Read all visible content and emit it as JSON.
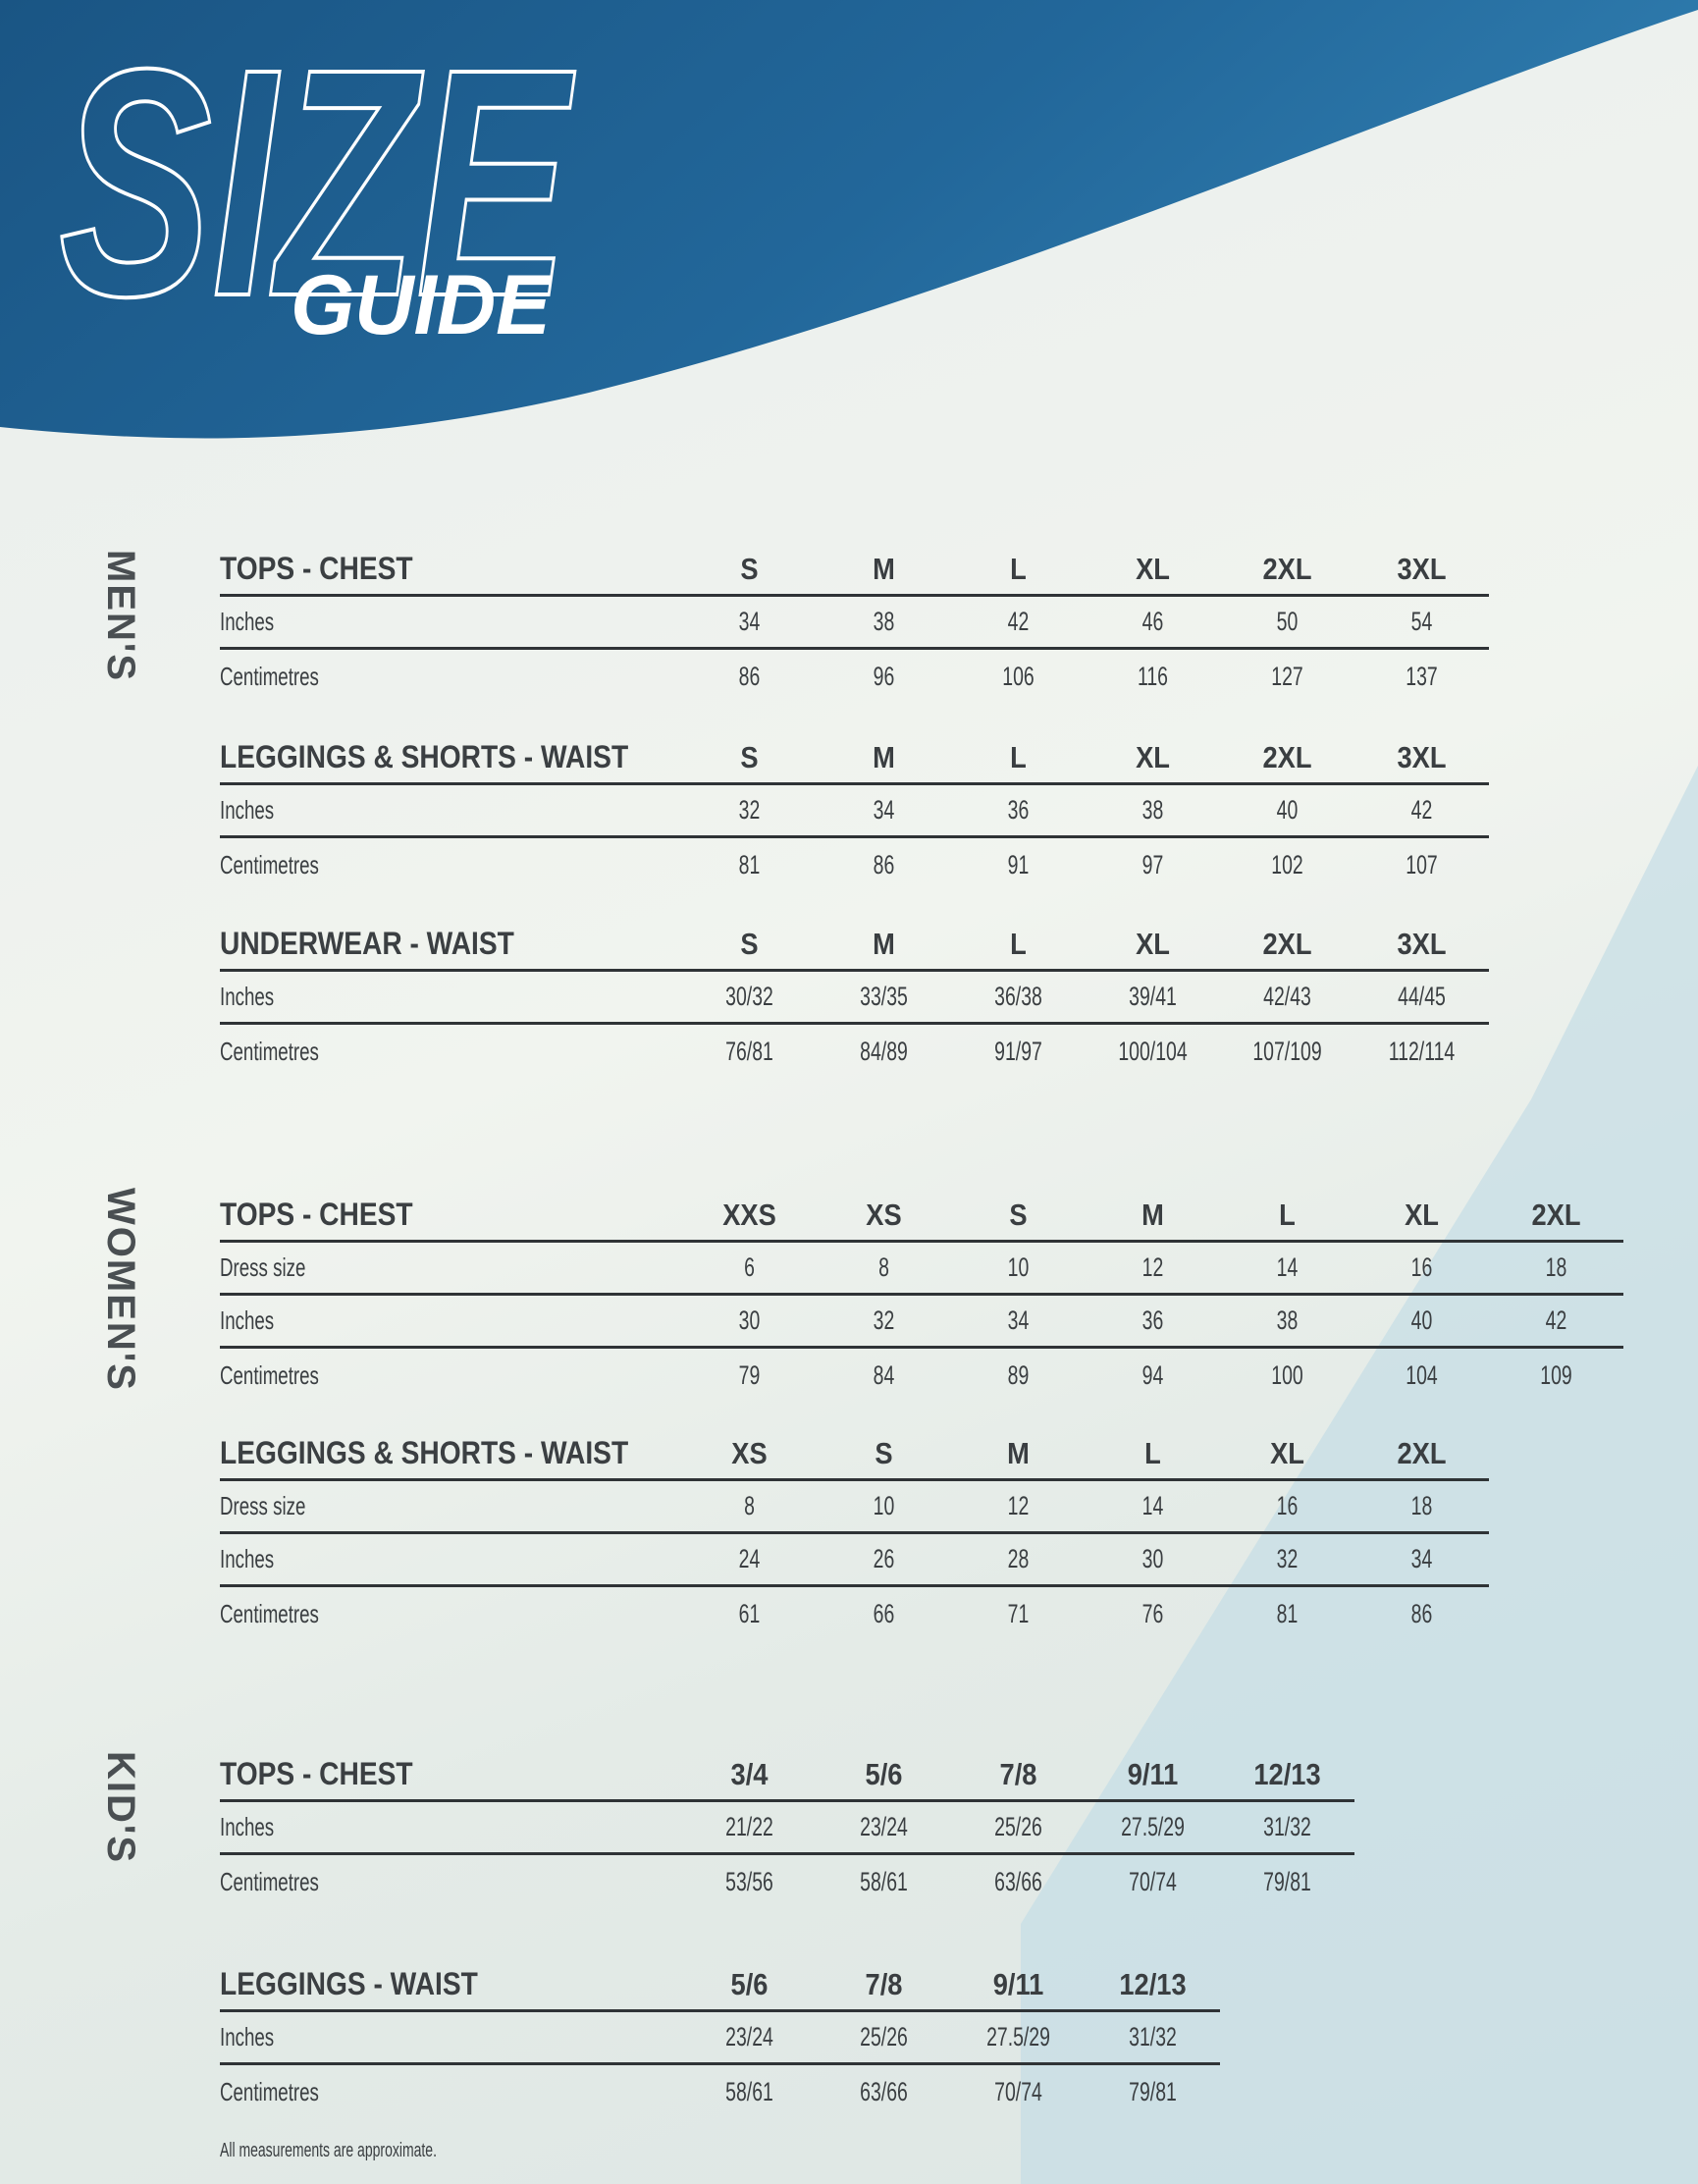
{
  "title": {
    "main": "SIZE",
    "sub": "GUIDE"
  },
  "colors": {
    "banner": "#1d5e8e",
    "banner_light": "#2c79ad",
    "accent_triangle": "#bcd9e3",
    "text": "#3a3e41"
  },
  "sections": [
    {
      "label": "MEN'S",
      "tables": [
        {
          "title": "TOPS - CHEST",
          "sizes": [
            "S",
            "M",
            "L",
            "XL",
            "2XL",
            "3XL"
          ],
          "rows": [
            {
              "label": "Inches",
              "values": [
                "34",
                "38",
                "42",
                "46",
                "50",
                "54"
              ]
            },
            {
              "label": "Centimetres",
              "values": [
                "86",
                "96",
                "106",
                "116",
                "127",
                "137"
              ]
            }
          ]
        },
        {
          "title": "LEGGINGS & SHORTS - WAIST",
          "sizes": [
            "S",
            "M",
            "L",
            "XL",
            "2XL",
            "3XL"
          ],
          "rows": [
            {
              "label": "Inches",
              "values": [
                "32",
                "34",
                "36",
                "38",
                "40",
                "42"
              ]
            },
            {
              "label": "Centimetres",
              "values": [
                "81",
                "86",
                "91",
                "97",
                "102",
                "107"
              ]
            }
          ]
        },
        {
          "title": "UNDERWEAR - WAIST",
          "sizes": [
            "S",
            "M",
            "L",
            "XL",
            "2XL",
            "3XL"
          ],
          "rows": [
            {
              "label": "Inches",
              "values": [
                "30/32",
                "33/35",
                "36/38",
                "39/41",
                "42/43",
                "44/45"
              ]
            },
            {
              "label": "Centimetres",
              "values": [
                "76/81",
                "84/89",
                "91/97",
                "100/104",
                "107/109",
                "112/114"
              ]
            }
          ]
        }
      ]
    },
    {
      "label": "WOMEN'S",
      "tables": [
        {
          "title": "TOPS - CHEST",
          "sizes": [
            "XXS",
            "XS",
            "S",
            "M",
            "L",
            "XL",
            "2XL"
          ],
          "rows": [
            {
              "label": "Dress size",
              "values": [
                "6",
                "8",
                "10",
                "12",
                "14",
                "16",
                "18"
              ]
            },
            {
              "label": "Inches",
              "values": [
                "30",
                "32",
                "34",
                "36",
                "38",
                "40",
                "42"
              ]
            },
            {
              "label": "Centimetres",
              "values": [
                "79",
                "84",
                "89",
                "94",
                "100",
                "104",
                "109"
              ]
            }
          ]
        },
        {
          "title": "LEGGINGS & SHORTS - WAIST",
          "sizes": [
            "XS",
            "S",
            "M",
            "L",
            "XL",
            "2XL"
          ],
          "rows": [
            {
              "label": "Dress size",
              "values": [
                "8",
                "10",
                "12",
                "14",
                "16",
                "18"
              ]
            },
            {
              "label": "Inches",
              "values": [
                "24",
                "26",
                "28",
                "30",
                "32",
                "34"
              ]
            },
            {
              "label": "Centimetres",
              "values": [
                "61",
                "66",
                "71",
                "76",
                "81",
                "86"
              ]
            }
          ]
        }
      ]
    },
    {
      "label": "KID'S",
      "tables": [
        {
          "title": "TOPS - CHEST",
          "sizes": [
            "3/4",
            "5/6",
            "7/8",
            "9/11",
            "12/13"
          ],
          "rows": [
            {
              "label": "Inches",
              "values": [
                "21/22",
                "23/24",
                "25/26",
                "27.5/29",
                "31/32"
              ]
            },
            {
              "label": "Centimetres",
              "values": [
                "53/56",
                "58/61",
                "63/66",
                "70/74",
                "79/81"
              ]
            }
          ]
        },
        {
          "title": "LEGGINGS - WAIST",
          "sizes": [
            "5/6",
            "7/8",
            "9/11",
            "12/13"
          ],
          "rows": [
            {
              "label": "Inches",
              "values": [
                "23/24",
                "25/26",
                "27.5/29",
                "31/32"
              ]
            },
            {
              "label": "Centimetres",
              "values": [
                "58/61",
                "63/66",
                "70/74",
                "79/81"
              ]
            }
          ]
        }
      ]
    }
  ],
  "footnote": "All measurements are approximate."
}
